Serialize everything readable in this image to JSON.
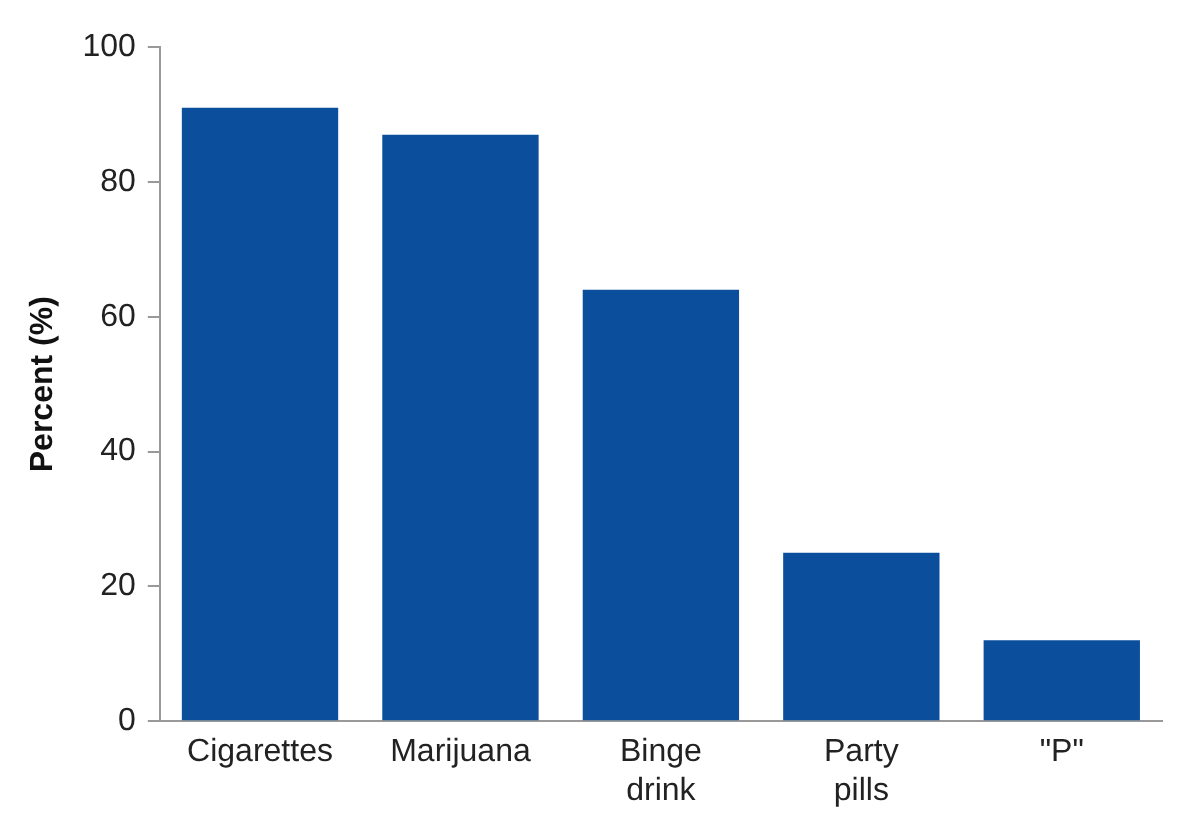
{
  "chart_data": {
    "type": "bar",
    "ylabel": "Percent (%)",
    "categories": [
      "Cigarettes",
      "Marijuana",
      "Binge drink",
      "Party pills",
      "\"P\""
    ],
    "values": [
      91,
      87,
      64,
      25,
      12
    ],
    "color": "#0b4f9c",
    "ylim": [
      0,
      100
    ],
    "yticks": [
      0,
      20,
      40,
      60,
      80,
      100
    ],
    "grid": false,
    "legend": false
  }
}
